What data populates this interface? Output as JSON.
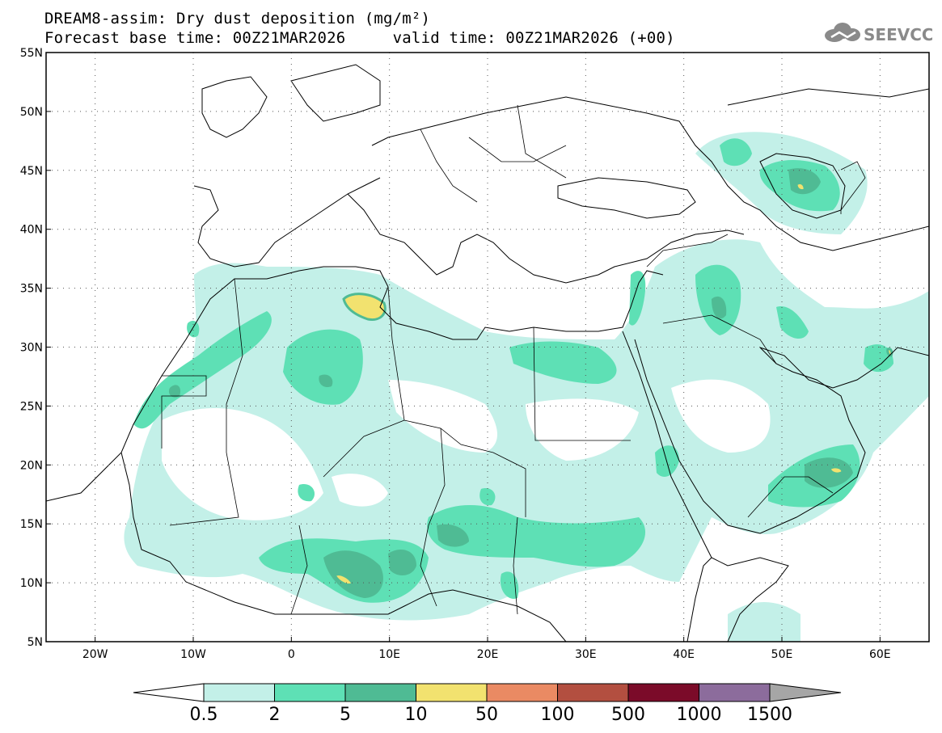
{
  "header": {
    "title": "DREAM8-assim: Dry dust deposition (mg/m²)",
    "forecast_base": "Forecast base time: 00Z21MAR2026",
    "valid_time": "valid time: 00Z21MAR2026 (+00)",
    "logo_text": "SEEVCCC"
  },
  "map": {
    "lon_range": [
      -25,
      65
    ],
    "lat_range": [
      5,
      55
    ],
    "lat_ticks": [
      "5N",
      "10N",
      "15N",
      "20N",
      "25N",
      "30N",
      "35N",
      "40N",
      "45N",
      "50N",
      "55N"
    ],
    "lon_ticks": [
      "20W",
      "10W",
      "0",
      "10E",
      "20E",
      "30E",
      "40E",
      "50E",
      "60E"
    ],
    "lon_tick_values": [
      -20,
      -10,
      0,
      10,
      20,
      30,
      40,
      50,
      60
    ],
    "lat_tick_values": [
      5,
      10,
      15,
      20,
      25,
      30,
      35,
      40,
      45,
      50,
      55
    ]
  },
  "colorbar": {
    "labels": [
      "0.5",
      "2",
      "5",
      "10",
      "50",
      "100",
      "500",
      "1000",
      "1500"
    ],
    "colors": [
      "#c3f0e8",
      "#5ee0b5",
      "#4fbb94",
      "#f2e26f",
      "#ea8a63",
      "#b34f40",
      "#7b0b29",
      "#8c6c9c"
    ],
    "under_color": "#ffffff",
    "over_color": "#a6a6a6"
  }
}
